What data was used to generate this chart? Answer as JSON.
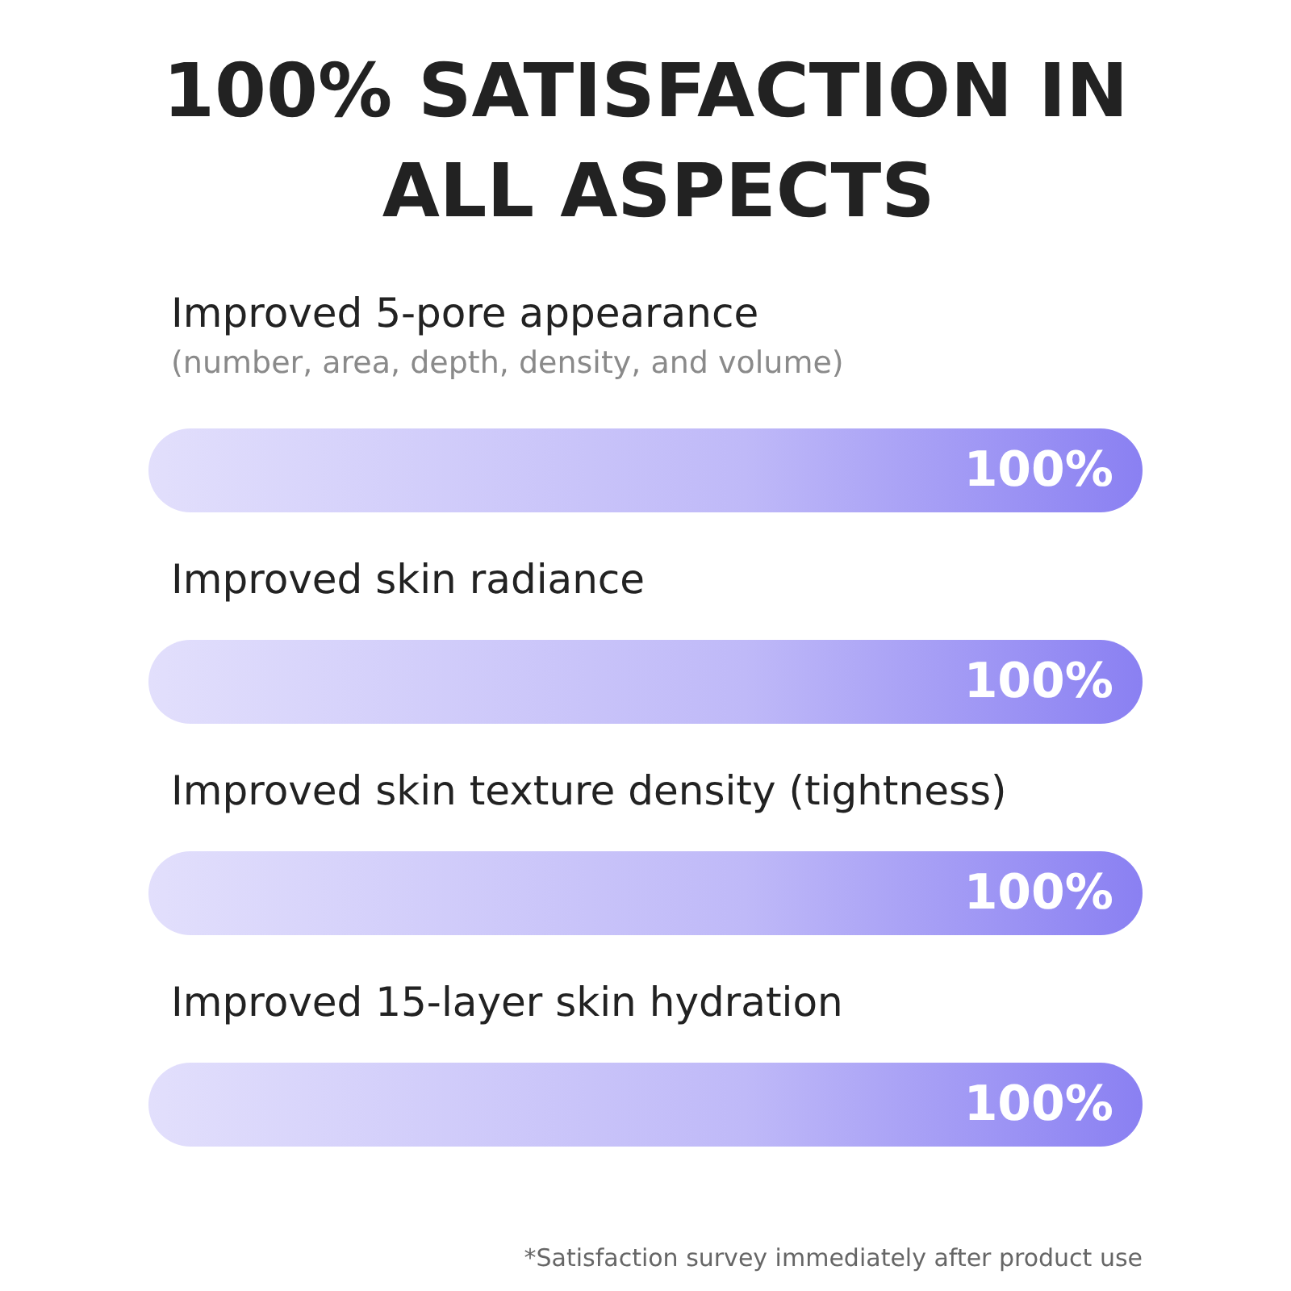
{
  "chart_data": {
    "type": "bar",
    "orientation": "horizontal",
    "title": "100% SATISFACTION IN ALL ASPECTS",
    "categories": [
      "Improved 5-pore appearance",
      "Improved skin radiance",
      "Improved skin texture density (tightness)",
      "Improved 15-layer skin hydration"
    ],
    "series": [
      {
        "color": "#8a80f2",
        "values": [
          100,
          100,
          100,
          100
        ],
        "value_labels": [
          "100%",
          "100%",
          "100%",
          "100%"
        ]
      }
    ],
    "annotations": [
      {
        "text": "(number, area, depth, density, and volume)",
        "y": "Improved 5-pore appearance"
      },
      "*Satisfaction survey immediately after product use"
    ],
    "tick_labels": false
  }
}
